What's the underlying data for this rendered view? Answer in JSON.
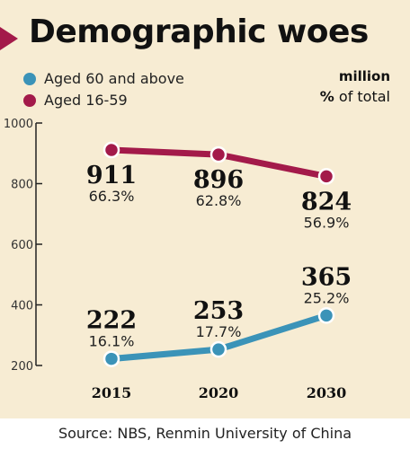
{
  "title": "Demographic woes",
  "legend": {
    "senior": "Aged 60 and above",
    "working": "Aged 16-59"
  },
  "units": {
    "million": "million",
    "pct_symbol": "%",
    "pct_text": " of total"
  },
  "source": "Source: NBS, Renmin University of China",
  "colors": {
    "senior": "#3b93b8",
    "working": "#a31a4a",
    "panel": "#f7ecd3"
  },
  "chart_data": {
    "type": "line",
    "categories": [
      "2015",
      "2020",
      "2030"
    ],
    "ylim": [
      200,
      1000
    ],
    "yticks": [
      "200",
      "400",
      "600",
      "800",
      "1000"
    ],
    "series": [
      {
        "name": "Aged 16-59",
        "values": [
          911,
          896,
          824
        ],
        "labels": [
          "911",
          "896",
          "824"
        ],
        "pct": [
          "66.3%",
          "62.8%",
          "56.9%"
        ]
      },
      {
        "name": "Aged 60 and above",
        "values": [
          222,
          253,
          365
        ],
        "labels": [
          "222",
          "253",
          "365"
        ],
        "pct": [
          "16.1%",
          "17.7%",
          "25.2%"
        ]
      }
    ]
  }
}
